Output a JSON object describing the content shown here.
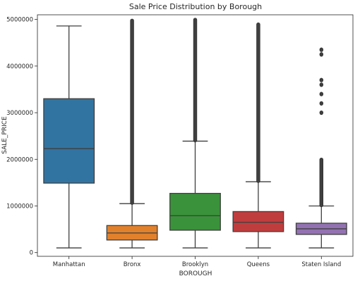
{
  "chart_data": {
    "type": "box",
    "title": "Sale Price Distribution by Borough",
    "xlabel": "BOROUGH",
    "ylabel": "SALE_PRICE",
    "ylim": [
      -80000,
      5100000
    ],
    "yticks": [
      0,
      1000000,
      2000000,
      3000000,
      4000000,
      5000000
    ],
    "ytick_labels": [
      "0",
      "1000000",
      "2000000",
      "3000000",
      "4000000",
      "5000000"
    ],
    "grid": false,
    "categories": [
      "Manhattan",
      "Bronx",
      "Brooklyn",
      "Queens",
      "Staten Island"
    ],
    "boxes": [
      {
        "category": "Manhattan",
        "color": "#3274a1",
        "whisker_low": 100000,
        "q1": 1490000,
        "median": 2230000,
        "q3": 3300000,
        "whisker_high": 4860000,
        "fliers": [],
        "flier_band": null
      },
      {
        "category": "Bronx",
        "color": "#e1812c",
        "whisker_low": 100000,
        "q1": 270000,
        "median": 420000,
        "q3": 580000,
        "whisker_high": 1050000,
        "fliers": [],
        "flier_band": [
          1060000,
          4980000
        ]
      },
      {
        "category": "Brooklyn",
        "color": "#3a923a",
        "whisker_low": 100000,
        "q1": 480000,
        "median": 790000,
        "q3": 1270000,
        "whisker_high": 2390000,
        "fliers": [],
        "flier_band": [
          2400000,
          5000000
        ]
      },
      {
        "category": "Queens",
        "color": "#c03d3e",
        "whisker_low": 100000,
        "q1": 450000,
        "median": 650000,
        "q3": 880000,
        "whisker_high": 1520000,
        "fliers": [],
        "flier_band": [
          1530000,
          4900000
        ]
      },
      {
        "category": "Staten Island",
        "color": "#9372b2",
        "whisker_low": 100000,
        "q1": 390000,
        "median": 510000,
        "q3": 630000,
        "whisker_high": 1000000,
        "fliers": [
          3000000,
          3200000,
          3400000,
          3600000,
          3700000,
          4250000,
          4350000
        ],
        "flier_band": [
          1010000,
          2000000
        ]
      }
    ]
  }
}
